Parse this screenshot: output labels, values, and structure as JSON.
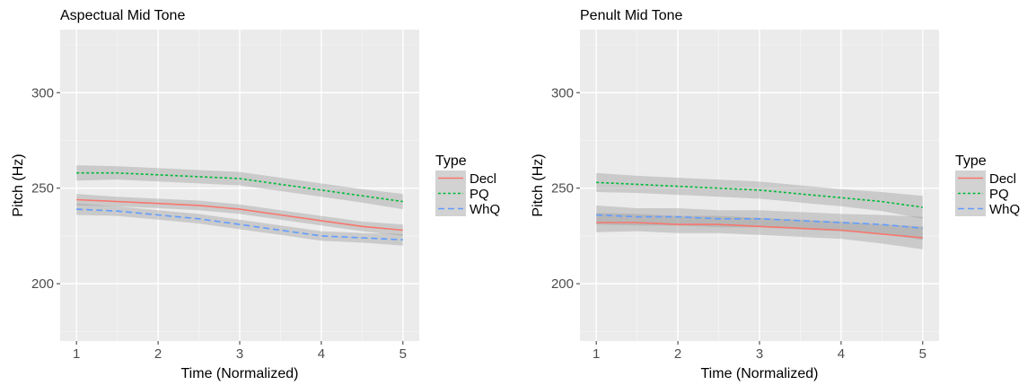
{
  "chart_data": [
    {
      "type": "line",
      "title": "Aspectual Mid Tone",
      "xlabel": "Time (Normalized)",
      "ylabel": "Pitch (Hz)",
      "xlim": [
        0.8,
        5.2
      ],
      "ylim": [
        170,
        333
      ],
      "x_ticks": [
        1,
        2,
        3,
        4,
        5
      ],
      "y_ticks": [
        200,
        250,
        300
      ],
      "x": [
        1,
        1.5,
        2,
        2.5,
        3,
        3.5,
        4,
        4.5,
        5
      ],
      "grid": true,
      "legend": {
        "title": "Type",
        "position": "right"
      },
      "series": [
        {
          "name": "Decl",
          "color": "#F8766D",
          "dash": "solid",
          "values": [
            244,
            243,
            242,
            241,
            239,
            236,
            233,
            230,
            228
          ],
          "se": [
            3.0,
            2.5,
            2.5,
            2.5,
            2.5,
            2.5,
            2.5,
            2.5,
            3.0
          ]
        },
        {
          "name": "PQ",
          "color": "#00BA38",
          "dash": "dotted",
          "values": [
            258,
            258,
            257,
            256,
            255,
            252,
            249,
            246,
            243
          ],
          "se": [
            4.0,
            3.5,
            3.5,
            3.5,
            3.5,
            3.5,
            3.5,
            3.5,
            4.0
          ]
        },
        {
          "name": "WhQ",
          "color": "#619CFF",
          "dash": "dashed",
          "values": [
            239,
            238,
            236,
            234,
            231,
            228,
            225,
            224,
            223
          ],
          "se": [
            3.0,
            2.5,
            2.5,
            2.5,
            2.5,
            2.5,
            2.5,
            2.5,
            3.0
          ]
        }
      ]
    },
    {
      "type": "line",
      "title": "Penult Mid Tone",
      "xlabel": "Time (Normalized)",
      "ylabel": "Pitch (Hz)",
      "xlim": [
        0.8,
        5.2
      ],
      "ylim": [
        170,
        333
      ],
      "x_ticks": [
        1,
        2,
        3,
        4,
        5
      ],
      "y_ticks": [
        200,
        250,
        300
      ],
      "x": [
        1,
        1.5,
        2,
        2.5,
        3,
        3.5,
        4,
        4.5,
        5
      ],
      "grid": true,
      "legend": {
        "title": "Type",
        "position": "right"
      },
      "series": [
        {
          "name": "Decl",
          "color": "#F8766D",
          "dash": "solid",
          "values": [
            232,
            232,
            231,
            231,
            230,
            229,
            228,
            226,
            224
          ],
          "se": [
            5.0,
            4.5,
            4.5,
            4.5,
            4.5,
            4.5,
            4.5,
            5.0,
            6.0
          ]
        },
        {
          "name": "PQ",
          "color": "#00BA38",
          "dash": "dotted",
          "values": [
            253,
            252,
            251,
            250,
            249,
            247,
            245,
            243,
            240
          ],
          "se": [
            5.0,
            4.5,
            4.5,
            4.5,
            4.5,
            4.5,
            4.5,
            5.0,
            6.0
          ]
        },
        {
          "name": "WhQ",
          "color": "#619CFF",
          "dash": "dashed",
          "values": [
            236,
            235,
            235,
            234,
            234,
            233,
            232,
            231,
            229
          ],
          "se": [
            5.0,
            4.5,
            4.5,
            4.5,
            4.5,
            4.5,
            4.5,
            5.0,
            6.0
          ]
        }
      ]
    }
  ]
}
